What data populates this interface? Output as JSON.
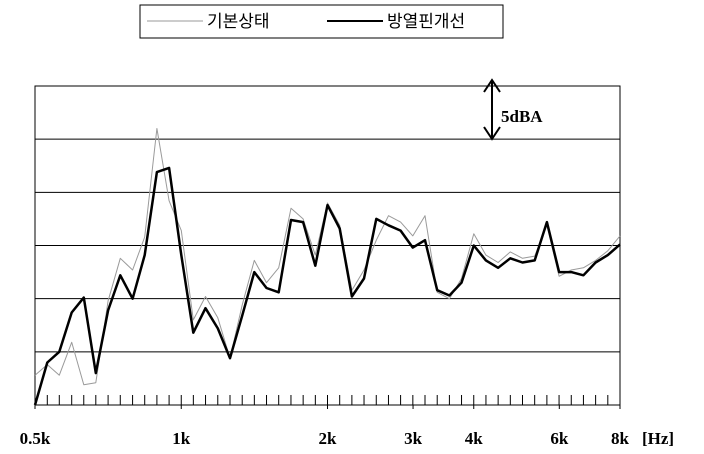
{
  "chart_data": {
    "type": "line",
    "log_x": true,
    "grid": true,
    "x": [
      0.5,
      0.53,
      0.561,
      0.595,
      0.63,
      0.667,
      0.707,
      0.749,
      0.794,
      0.841,
      0.891,
      0.944,
      1,
      1.059,
      1.122,
      1.189,
      1.26,
      1.335,
      1.414,
      1.498,
      1.587,
      1.682,
      1.782,
      1.888,
      2,
      2.119,
      2.245,
      2.378,
      2.52,
      2.67,
      2.828,
      2.997,
      3.175,
      3.364,
      3.564,
      3.775,
      4,
      4.238,
      4.49,
      4.757,
      5.04,
      5.339,
      5.657,
      5.993,
      6.35,
      6.727,
      7.127,
      7.551,
      8
    ],
    "series": [
      {
        "name": "기본상태",
        "color": "#9a9a9a",
        "width": 1,
        "values": [
          2.8,
          3.8,
          2.8,
          5.9,
          1.9,
          2.1,
          9.8,
          13.8,
          12.7,
          15.8,
          26.0,
          19.2,
          16.4,
          8.0,
          10.2,
          8.2,
          4.4,
          9.4,
          13.6,
          11.5,
          12.9,
          18.5,
          17.5,
          14.1,
          19.0,
          16.9,
          10.8,
          12.7,
          15.5,
          17.8,
          17.2,
          15.9,
          17.8,
          10.6,
          10.0,
          11.9,
          16.1,
          14.1,
          13.4,
          14.4,
          13.8,
          14.0,
          16.9,
          12.1,
          12.7,
          12.9,
          13.6,
          14.5,
          15.9
        ]
      },
      {
        "name": "방열핀개선",
        "color": "#000000",
        "width": 2.5,
        "values": [
          0,
          4.0,
          5.0,
          8.7,
          10.1,
          3.0,
          8.9,
          12.2,
          10.0,
          14.1,
          21.9,
          22.3,
          14.1,
          6.8,
          9.1,
          7.2,
          4.4,
          8.4,
          12.5,
          11.0,
          10.6,
          17.4,
          17.2,
          13.1,
          18.8,
          16.6,
          10.2,
          11.9,
          17.5,
          16.9,
          16.4,
          14.8,
          15.5,
          10.8,
          10.3,
          11.5,
          15.0,
          13.6,
          12.9,
          13.8,
          13.4,
          13.6,
          17.2,
          12.5,
          12.5,
          12.2,
          13.4,
          14.1,
          15.1
        ]
      }
    ],
    "xlim": [
      0.5,
      8
    ],
    "xticks": [
      {
        "value": 0.5,
        "label": "0.5k"
      },
      {
        "value": 1,
        "label": "1k"
      },
      {
        "value": 2,
        "label": "2k"
      },
      {
        "value": 3,
        "label": "3k"
      },
      {
        "value": 4,
        "label": "4k"
      },
      {
        "value": 6,
        "label": "6k"
      },
      {
        "value": 8,
        "label": "8k"
      }
    ],
    "x_label": "[Hz]",
    "ylim": [
      0,
      30
    ],
    "yticks": [
      5,
      10,
      15,
      20,
      25
    ],
    "annotation": "5dBA"
  }
}
